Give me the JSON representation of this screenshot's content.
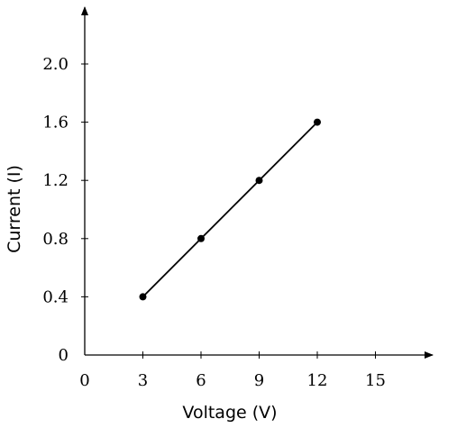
{
  "chart_data": {
    "type": "line",
    "xlabel": "Voltage (V)",
    "ylabel": "Current (I)",
    "xlim": [
      0,
      17.8
    ],
    "ylim": [
      0,
      2.4
    ],
    "x_ticks": [
      {
        "value": 0,
        "label": "0"
      },
      {
        "value": 3,
        "label": "3"
      },
      {
        "value": 6,
        "label": "6"
      },
      {
        "value": 9,
        "label": "9"
      },
      {
        "value": 12,
        "label": "12"
      },
      {
        "value": 15,
        "label": "15"
      }
    ],
    "y_ticks": [
      {
        "value": 0,
        "label": "0"
      },
      {
        "value": 0.4,
        "label": "0.4"
      },
      {
        "value": 0.8,
        "label": "0.8"
      },
      {
        "value": 1.2,
        "label": "1.2"
      },
      {
        "value": 1.6,
        "label": "1.6"
      },
      {
        "value": 2.0,
        "label": "2.0"
      }
    ],
    "series": [
      {
        "x": [
          3,
          6,
          9,
          12
        ],
        "y": [
          0.4,
          0.8,
          1.2,
          1.6
        ],
        "color": "#000000",
        "markers": true
      }
    ],
    "grid": false,
    "legend": false
  }
}
